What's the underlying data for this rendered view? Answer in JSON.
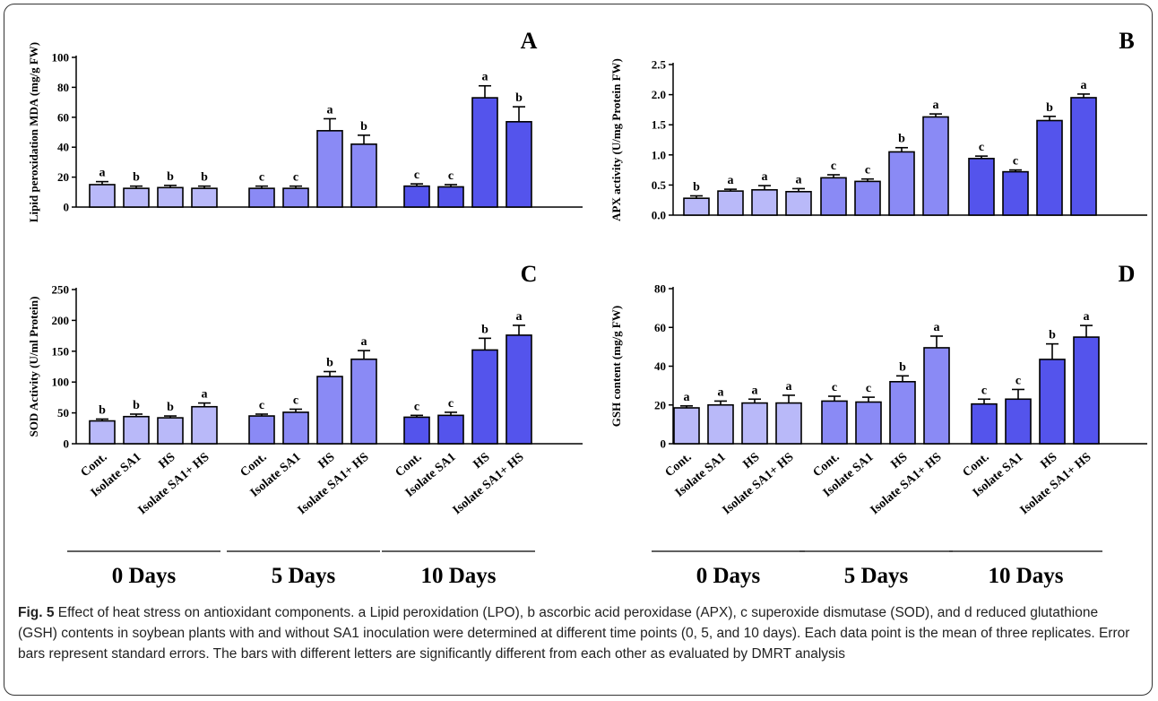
{
  "caption": {
    "label": "Fig. 5",
    "text": " Effect of heat stress on antioxidant components. a Lipid peroxidation (LPO), b ascorbic acid peroxidase (APX), c superoxide dismutase (SOD), and d reduced glutathione (GSH) contents in soybean plants with and without SA1 inoculation were determined at different time points (0, 5, and 10 days). Each data point is the mean of three replicates. Error bars represent standard errors. The bars with different letters are significantly different from each other as evaluated by DMRT analysis"
  },
  "colors": {
    "day0": "#b9b9f9",
    "day5": "#8a8af5",
    "day10": "#5454ec",
    "stroke": "#000000"
  },
  "categories": [
    "Cont.",
    "Isolate SA1",
    "HS",
    "Isolate SA1+ HS"
  ],
  "groups": [
    "0 Days",
    "5 Days",
    "10 Days"
  ],
  "chart_data": [
    {
      "type": "bar",
      "panel": "A",
      "ylabel": "Lipid peroxidation MDA (mg/g FW)",
      "ylim": [
        0,
        100
      ],
      "yticks": [
        0,
        20,
        40,
        60,
        80,
        100
      ],
      "series": [
        {
          "name": "0 Days",
          "values": [
            15,
            12.5,
            13,
            12.5
          ],
          "errors": [
            2,
            1.5,
            1.5,
            1.5
          ],
          "letters": [
            "a",
            "b",
            "b",
            "b"
          ]
        },
        {
          "name": "5 Days",
          "values": [
            12.5,
            12.5,
            51,
            42
          ],
          "errors": [
            1.5,
            1.5,
            8,
            6
          ],
          "letters": [
            "c",
            "c",
            "a",
            "b"
          ]
        },
        {
          "name": "10 Days",
          "values": [
            14,
            13.5,
            73,
            57
          ],
          "errors": [
            1.5,
            1.5,
            8,
            10
          ],
          "letters": [
            "c",
            "c",
            "a",
            "b"
          ]
        }
      ]
    },
    {
      "type": "bar",
      "panel": "B",
      "ylabel": "APX activity (U/mg Protein FW)",
      "ylim": [
        0,
        2.5
      ],
      "yticks": [
        0.0,
        0.5,
        1.0,
        1.5,
        2.0,
        2.5
      ],
      "series": [
        {
          "name": "0 Days",
          "values": [
            0.28,
            0.4,
            0.42,
            0.39
          ],
          "errors": [
            0.04,
            0.03,
            0.07,
            0.05
          ],
          "letters": [
            "b",
            "a",
            "a",
            "a"
          ]
        },
        {
          "name": "5 Days",
          "values": [
            0.62,
            0.56,
            1.05,
            1.63
          ],
          "errors": [
            0.05,
            0.04,
            0.07,
            0.05
          ],
          "letters": [
            "c",
            "c",
            "b",
            "a"
          ]
        },
        {
          "name": "10 Days",
          "values": [
            0.94,
            0.72,
            1.57,
            1.95
          ],
          "errors": [
            0.04,
            0.03,
            0.07,
            0.06
          ],
          "letters": [
            "c",
            "c",
            "b",
            "a"
          ]
        }
      ]
    },
    {
      "type": "bar",
      "panel": "C",
      "ylabel": "SOD Activity (U/ml Protein)",
      "ylim": [
        0,
        250
      ],
      "yticks": [
        0,
        50,
        100,
        150,
        200,
        250
      ],
      "series": [
        {
          "name": "0 Days",
          "values": [
            37,
            44,
            42,
            60
          ],
          "errors": [
            3,
            4,
            3,
            6
          ],
          "letters": [
            "b",
            "b",
            "b",
            "a"
          ]
        },
        {
          "name": "5 Days",
          "values": [
            45,
            51,
            109,
            137
          ],
          "errors": [
            3,
            5,
            8,
            14
          ],
          "letters": [
            "c",
            "c",
            "b",
            "a"
          ]
        },
        {
          "name": "10 Days",
          "values": [
            43,
            46,
            152,
            176
          ],
          "errors": [
            3,
            5,
            19,
            16
          ],
          "letters": [
            "c",
            "c",
            "b",
            "a"
          ]
        }
      ]
    },
    {
      "type": "bar",
      "panel": "D",
      "ylabel": "GSH content (mg/g FW)",
      "ylim": [
        0,
        80
      ],
      "yticks": [
        0,
        20,
        40,
        60,
        80
      ],
      "series": [
        {
          "name": "0 Days",
          "values": [
            18.5,
            20,
            21,
            21
          ],
          "errors": [
            1,
            2,
            2,
            4
          ],
          "letters": [
            "a",
            "a",
            "a",
            "a"
          ]
        },
        {
          "name": "5 Days",
          "values": [
            22,
            21.5,
            32,
            49.5
          ],
          "errors": [
            2.5,
            2.5,
            3,
            6
          ],
          "letters": [
            "c",
            "c",
            "b",
            "a"
          ]
        },
        {
          "name": "10 Days",
          "values": [
            20.5,
            23,
            43.5,
            55
          ],
          "errors": [
            2.5,
            5,
            8,
            6
          ],
          "letters": [
            "c",
            "c",
            "b",
            "a"
          ]
        }
      ]
    }
  ]
}
